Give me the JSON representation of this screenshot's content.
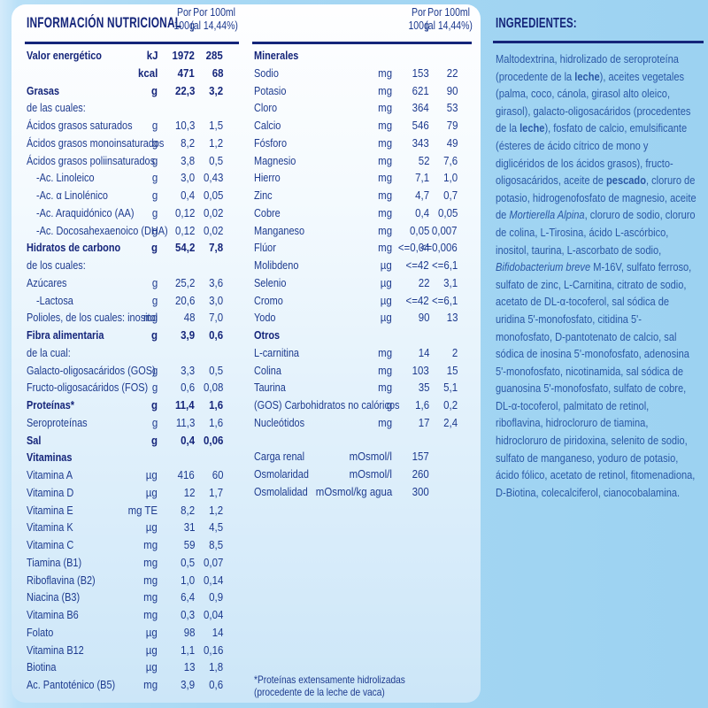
{
  "colors": {
    "page_background": "#a8d8f4",
    "panel_background_top": "#fefeff",
    "panel_background_bottom": "#cce6f8",
    "table_ink": "#1d3a8e",
    "heading_ink": "#15257a",
    "ingredients_ink": "#2a57a5"
  },
  "nutrition": {
    "title": "INFORMACIÓN NUTRICIONAL",
    "col_head_100g": [
      "Por",
      "100g"
    ],
    "col_head_100ml": [
      "Por 100ml",
      "(al 14,44%)"
    ],
    "left_rows": [
      {
        "l": "Valor energético",
        "u": "kJ",
        "a": "1972",
        "b": "285",
        "s": "b"
      },
      {
        "l": "",
        "u": "kcal",
        "a": "471",
        "b": "68",
        "s": "b"
      },
      {
        "l": "Grasas",
        "u": "g",
        "a": "22,3",
        "b": "3,2",
        "s": "b"
      },
      {
        "l": "de las cuales:",
        "u": "",
        "a": "",
        "b": "",
        "s": "n"
      },
      {
        "l": "Ácidos grasos saturados",
        "u": "g",
        "a": "10,3",
        "b": "1,5",
        "s": "n"
      },
      {
        "l": "Ácidos grasos monoinsaturados",
        "u": "g",
        "a": "8,2",
        "b": "1,2",
        "s": "n"
      },
      {
        "l": "Ácidos grasos poliinsaturados",
        "u": "g",
        "a": "3,8",
        "b": "0,5",
        "s": "n"
      },
      {
        "l": "-Ac. Linoleico",
        "u": "g",
        "a": "3,0",
        "b": "0,43",
        "s": "i"
      },
      {
        "l": "-Ac. α Linolénico",
        "u": "g",
        "a": "0,4",
        "b": "0,05",
        "s": "i"
      },
      {
        "l": "-Ac. Araquidónico (AA)",
        "u": "g",
        "a": "0,12",
        "b": "0,02",
        "s": "i"
      },
      {
        "l": "-Ac. Docosahexaenoico (DHA)",
        "u": "g",
        "a": "0,12",
        "b": "0,02",
        "s": "i"
      },
      {
        "l": "Hidratos de carbono",
        "u": "g",
        "a": "54,2",
        "b": "7,8",
        "s": "b"
      },
      {
        "l": "de los cuales:",
        "u": "",
        "a": "",
        "b": "",
        "s": "n"
      },
      {
        "l": "Azúcares",
        "u": "g",
        "a": "25,2",
        "b": "3,6",
        "s": "n"
      },
      {
        "l": "-Lactosa",
        "u": "g",
        "a": "20,6",
        "b": "3,0",
        "s": "i"
      },
      {
        "l": "Polioles, de los cuales: inositol",
        "u": "mg",
        "a": "48",
        "b": "7,0",
        "s": "n"
      },
      {
        "l": "Fibra alimentaria",
        "u": "g",
        "a": "3,9",
        "b": "0,6",
        "s": "b"
      },
      {
        "l": "de la cual:",
        "u": "",
        "a": "",
        "b": "",
        "s": "n"
      },
      {
        "l": "Galacto-oligosacáridos (GOS)",
        "u": "g",
        "a": "3,3",
        "b": "0,5",
        "s": "n"
      },
      {
        "l": "Fructo-oligosacáridos (FOS)",
        "u": "g",
        "a": "0,6",
        "b": "0,08",
        "s": "n"
      },
      {
        "l": "Proteínas*",
        "u": "g",
        "a": "11,4",
        "b": "1,6",
        "s": "b"
      },
      {
        "l": "Seroproteínas",
        "u": "g",
        "a": "11,3",
        "b": "1,6",
        "s": "n"
      },
      {
        "l": "Sal",
        "u": "g",
        "a": "0,4",
        "b": "0,06",
        "s": "b"
      },
      {
        "l": "Vitaminas",
        "u": "",
        "a": "",
        "b": "",
        "s": "h"
      },
      {
        "l": "Vitamina A",
        "u": "µg",
        "a": "416",
        "b": "60",
        "s": "n"
      },
      {
        "l": "Vitamina D",
        "u": "µg",
        "a": "12",
        "b": "1,7",
        "s": "n"
      },
      {
        "l": "Vitamina E",
        "u": "mg TE",
        "a": "8,2",
        "b": "1,2",
        "s": "n"
      },
      {
        "l": "Vitamina K",
        "u": "µg",
        "a": "31",
        "b": "4,5",
        "s": "n"
      },
      {
        "l": "Vitamina C",
        "u": "mg",
        "a": "59",
        "b": "8,5",
        "s": "n"
      },
      {
        "l": "Tiamina (B1)",
        "u": "mg",
        "a": "0,5",
        "b": "0,07",
        "s": "n"
      },
      {
        "l": "Riboflavina (B2)",
        "u": "mg",
        "a": "1,0",
        "b": "0,14",
        "s": "n"
      },
      {
        "l": "Niacina (B3)",
        "u": "mg",
        "a": "6,4",
        "b": "0,9",
        "s": "n"
      },
      {
        "l": "Vitamina B6",
        "u": "mg",
        "a": "0,3",
        "b": "0,04",
        "s": "n"
      },
      {
        "l": "Folato",
        "u": "µg",
        "a": "98",
        "b": "14",
        "s": "n"
      },
      {
        "l": "Vitamina B12",
        "u": "µg",
        "a": "1,1",
        "b": "0,16",
        "s": "n"
      },
      {
        "l": "Biotina",
        "u": "µg",
        "a": "13",
        "b": "1,8",
        "s": "n"
      },
      {
        "l": "Ac. Pantoténico (B5)",
        "u": "mg",
        "a": "3,9",
        "b": "0,6",
        "s": "n"
      }
    ],
    "middle_rows": [
      {
        "l": "Minerales",
        "u": "",
        "a": "",
        "b": "",
        "s": "h"
      },
      {
        "l": "Sodio",
        "u": "mg",
        "a": "153",
        "b": "22",
        "s": "n"
      },
      {
        "l": "Potasio",
        "u": "mg",
        "a": "621",
        "b": "90",
        "s": "n"
      },
      {
        "l": "Cloro",
        "u": "mg",
        "a": "364",
        "b": "53",
        "s": "n"
      },
      {
        "l": "Calcio",
        "u": "mg",
        "a": "546",
        "b": "79",
        "s": "n"
      },
      {
        "l": "Fósforo",
        "u": "mg",
        "a": "343",
        "b": "49",
        "s": "n"
      },
      {
        "l": "Magnesio",
        "u": "mg",
        "a": "52",
        "b": "7,6",
        "s": "n"
      },
      {
        "l": "Hierro",
        "u": "mg",
        "a": "7,1",
        "b": "1,0",
        "s": "n"
      },
      {
        "l": "Zinc",
        "u": "mg",
        "a": "4,7",
        "b": "0,7",
        "s": "n"
      },
      {
        "l": "Cobre",
        "u": "mg",
        "a": "0,4",
        "b": "0,05",
        "s": "n"
      },
      {
        "l": "Manganeso",
        "u": "mg",
        "a": "0,05",
        "b": "0,007",
        "s": "n"
      },
      {
        "l": "Flúor",
        "u": "mg",
        "a": "<=0,04",
        "b": "<=0,006",
        "s": "n"
      },
      {
        "l": "Molibdeno",
        "u": "µg",
        "a": "<=42",
        "b": "<=6,1",
        "s": "n"
      },
      {
        "l": "Selenio",
        "u": "µg",
        "a": "22",
        "b": "3,1",
        "s": "n"
      },
      {
        "l": "Cromo",
        "u": "µg",
        "a": "<=42",
        "b": "<=6,1",
        "s": "n"
      },
      {
        "l": "Yodo",
        "u": "µg",
        "a": "90",
        "b": "13",
        "s": "n"
      },
      {
        "l": "Otros",
        "u": "",
        "a": "",
        "b": "",
        "s": "h"
      },
      {
        "l": "L-carnitina",
        "u": "mg",
        "a": "14",
        "b": "2",
        "s": "n"
      },
      {
        "l": "Colina",
        "u": "mg",
        "a": "103",
        "b": "15",
        "s": "n"
      },
      {
        "l": "Taurina",
        "u": "mg",
        "a": "35",
        "b": "5,1",
        "s": "n"
      },
      {
        "l": "(GOS) Carbohidratos no calóricos",
        "u": "g",
        "a": "1,6",
        "b": "0,2",
        "s": "n"
      },
      {
        "l": "Nucleótidos",
        "u": "mg",
        "a": "17",
        "b": "2,4",
        "s": "n"
      },
      {
        "l": "",
        "u": "",
        "a": "",
        "b": "",
        "s": "sp"
      },
      {
        "l": "Carga renal",
        "u": "mOsmol/l",
        "a": "157",
        "b": "",
        "s": "n"
      },
      {
        "l": "Osmolaridad",
        "u": "mOsmol/l",
        "a": "260",
        "b": "",
        "s": "n"
      },
      {
        "l": "Osmolalidad",
        "u": "mOsmol/kg agua",
        "a": "300",
        "b": "",
        "s": "n"
      }
    ],
    "footnote": "*Proteínas extensamente hidrolizadas (procedente de la leche de vaca)"
  },
  "ingredients": {
    "title": "INGREDIENTES:",
    "segments": [
      {
        "t": "Maltodextrina, hidrolizado de seroproteína (procedente de la ",
        "s": "n"
      },
      {
        "t": "leche",
        "s": "b"
      },
      {
        "t": "), aceites vegetales (palma, coco, cánola, girasol alto oleico, girasol), galacto-oligosacáridos (procedentes de la ",
        "s": "n"
      },
      {
        "t": "leche",
        "s": "b"
      },
      {
        "t": "), fosfato de calcio, emulsificante (ésteres de ácido cítrico de mono y diglicéridos de los ácidos grasos), fructo-oligosacáridos, aceite de ",
        "s": "n"
      },
      {
        "t": "pescado",
        "s": "b"
      },
      {
        "t": ", cloruro de potasio, hidrogenofosfato de magnesio, aceite de ",
        "s": "n"
      },
      {
        "t": "Mortierella Alpina",
        "s": "i"
      },
      {
        "t": ", cloruro de sodio, cloruro de colina, L-Tirosina, ácido L-ascórbico, inositol, taurina, L-ascorbato de sodio, ",
        "s": "n"
      },
      {
        "t": "Bifidobacterium breve",
        "s": "i"
      },
      {
        "t": " M-16V, sulfato ferroso, sulfato de zinc, L-Carnitina, citrato de sodio, acetato de DL-α-tocoferol, sal sódica de uridina 5'-monofosfato, citidina 5'-monofosfato, D-pantotenato de calcio, sal sódica de inosina 5'-monofosfato, adenosina 5'-monofosfato, nicotinamida, sal sódica de guanosina 5'-monofosfato, sulfato de cobre, DL-α-tocoferol, palmitato de retinol, riboflavina, hidrocloruro de tiamina, hidrocloruro de piridoxina, selenito de sodio, sulfato de manganeso, yoduro de potasio, ácido fólico, acetato de retinol, fitomenadiona, D-Biotina, colecalciferol, cianocobalamina.",
        "s": "n"
      }
    ]
  }
}
